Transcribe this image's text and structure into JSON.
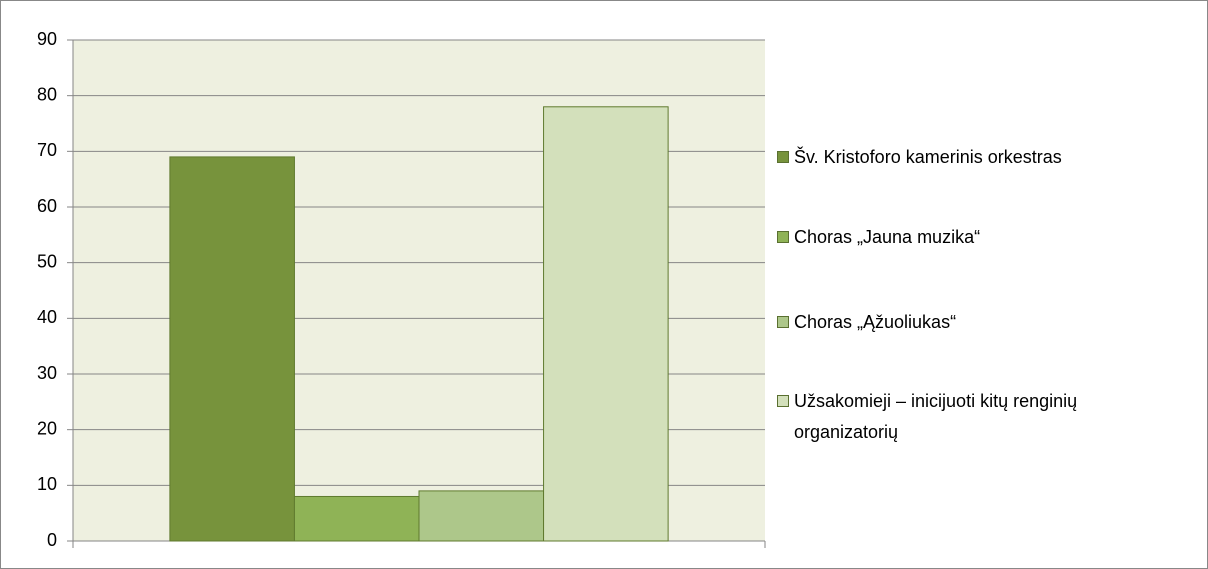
{
  "chart_data": {
    "type": "bar",
    "categories": [
      null
    ],
    "series": [
      {
        "name": "Šv. Kristoforo kamerinis orkestras",
        "color": "#77933c",
        "values": [
          69
        ]
      },
      {
        "name": "Choras „Jauna muzika“",
        "color": "#8fb356",
        "values": [
          8
        ]
      },
      {
        "name": "Choras „Ąžuoliukas“",
        "color": "#adc78a",
        "values": [
          9
        ]
      },
      {
        "name": "Užsakomieji – inicijuoti kitų renginių organizatorių",
        "color": "#d3e0bb",
        "values": [
          78
        ]
      }
    ],
    "ylim": [
      0,
      90
    ],
    "yticks": [
      0,
      10,
      20,
      30,
      40,
      50,
      60,
      70,
      80,
      90
    ],
    "grid": true,
    "legend": "right"
  }
}
